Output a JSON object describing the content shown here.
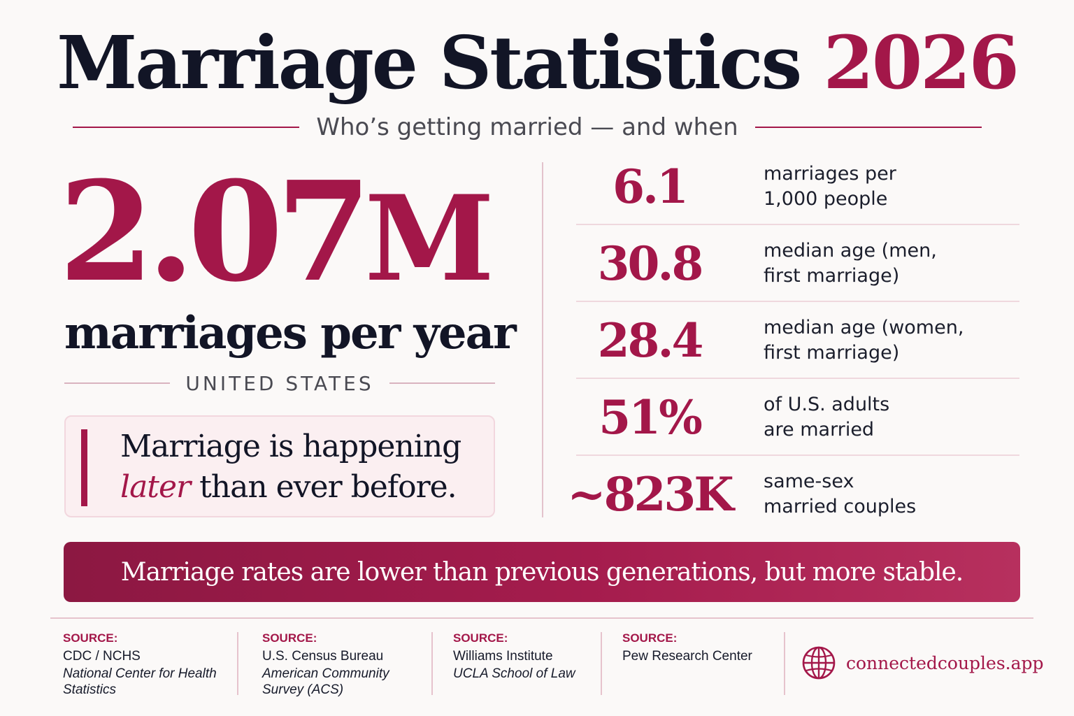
{
  "header": {
    "title_main": "Marriage Statistics",
    "title_year": "2026",
    "subtitle": "Who’s getting married — and when"
  },
  "hero": {
    "number": "2.07",
    "unit": "M",
    "label": "marriages per year",
    "country": "UNITED STATES",
    "callout_before": "Marriage is happening",
    "callout_emph": "later",
    "callout_after": "than ever before."
  },
  "stats": [
    {
      "value": "6.1",
      "desc_line1": "marriages per",
      "desc_line2": "1,000 people"
    },
    {
      "value": "30.8",
      "desc_line1": "median age (men,",
      "desc_line2": "first marriage)"
    },
    {
      "value": "28.4",
      "desc_line1": "median age (women,",
      "desc_line2": "first marriage)"
    },
    {
      "value": "51%",
      "desc_line1": "of U.S. adults",
      "desc_line2": "are married"
    },
    {
      "value": "~823K",
      "desc_line1": "same-sex",
      "desc_line2": "married couples"
    }
  ],
  "banner": {
    "text": "Marriage rates are lower than previous generations, but more stable."
  },
  "sources": [
    {
      "label": "SOURCE:",
      "org": "CDC / NCHS",
      "detail_line1": "National Center for Health",
      "detail_line2": "Statistics"
    },
    {
      "label": "SOURCE:",
      "org": "U.S. Census Bureau",
      "detail_line1": "American Community",
      "detail_line2": "Survey (ACS)"
    },
    {
      "label": "SOURCE:",
      "org": "Williams Institute",
      "detail_line1": "UCLA School of Law",
      "detail_line2": ""
    },
    {
      "label": "SOURCE:",
      "org": "Pew Research Center",
      "detail_line1": "",
      "detail_line2": ""
    }
  ],
  "brand": {
    "icon": "globe-icon",
    "text": "connectedcouples.app"
  },
  "colors": {
    "accent": "#a31749",
    "ink": "#121526",
    "background": "#fbf9f8"
  }
}
